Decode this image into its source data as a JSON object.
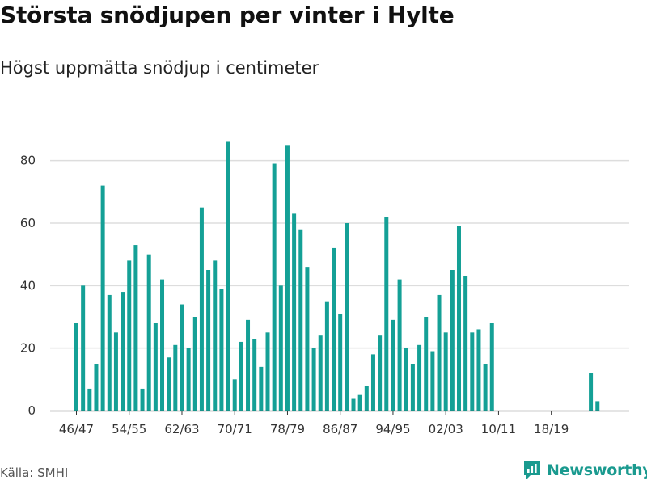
{
  "header": {
    "title": "Största snödjupen per vinter i Hylte",
    "subtitle": "Högst uppmätta snödjup i centimeter"
  },
  "footer": {
    "source": "Källa: SMHI",
    "brand": "Newsworthy"
  },
  "colors": {
    "bar": "#14a096",
    "grid": "#dddddd",
    "axis": "#333333",
    "brand": "#1a9a8f"
  },
  "chart_data": {
    "type": "bar",
    "title": "Största snödjupen per vinter i Hylte",
    "subtitle": "Högst uppmätta snödjup i centimeter",
    "xlabel": "",
    "ylabel": "",
    "ylim": [
      0,
      90
    ],
    "yticks": [
      0,
      20,
      40,
      60,
      80
    ],
    "grid": true,
    "categories": [
      "46/47",
      "47/48",
      "48/49",
      "49/50",
      "50/51",
      "51/52",
      "52/53",
      "53/54",
      "54/55",
      "55/56",
      "56/57",
      "57/58",
      "58/59",
      "59/60",
      "60/61",
      "61/62",
      "62/63",
      "63/64",
      "64/65",
      "65/66",
      "66/67",
      "67/68",
      "68/69",
      "69/70",
      "70/71",
      "71/72",
      "72/73",
      "73/74",
      "74/75",
      "75/76",
      "76/77",
      "77/78",
      "78/79",
      "79/80",
      "80/81",
      "81/82",
      "82/83",
      "83/84",
      "84/85",
      "85/86",
      "86/87",
      "87/88",
      "88/89",
      "89/90",
      "90/91",
      "91/92",
      "92/93",
      "93/94",
      "94/95",
      "95/96",
      "96/97",
      "97/98",
      "98/99",
      "99/00",
      "00/01",
      "01/02",
      "02/03",
      "03/04",
      "04/05",
      "05/06",
      "06/07",
      "07/08",
      "08/09",
      "09/10",
      "10/11",
      "11/12",
      "12/13",
      "13/14",
      "14/15",
      "15/16",
      "16/17",
      "17/18",
      "18/19",
      "19/20",
      "20/21",
      "21/22",
      "22/23",
      "23/24",
      "24/25",
      "25/26"
    ],
    "tick_labels": [
      "46/47",
      "54/55",
      "62/63",
      "70/71",
      "78/79",
      "86/87",
      "94/95",
      "02/03",
      "10/11",
      "18/19"
    ],
    "series": [
      {
        "name": "Snödjup (cm)",
        "values": [
          28,
          40,
          7,
          15,
          72,
          37,
          25,
          38,
          48,
          53,
          7,
          50,
          28,
          42,
          17,
          21,
          34,
          20,
          30,
          65,
          45,
          48,
          39,
          86,
          10,
          22,
          29,
          23,
          14,
          25,
          79,
          40,
          85,
          63,
          58,
          46,
          20,
          24,
          35,
          52,
          31,
          60,
          4,
          5,
          8,
          18,
          24,
          62,
          29,
          42,
          20,
          15,
          21,
          30,
          19,
          37,
          25,
          45,
          59,
          43,
          25,
          26,
          15,
          28,
          null,
          null,
          null,
          null,
          null,
          null,
          null,
          null,
          null,
          null,
          null,
          null,
          null,
          null,
          12,
          3
        ]
      }
    ]
  }
}
